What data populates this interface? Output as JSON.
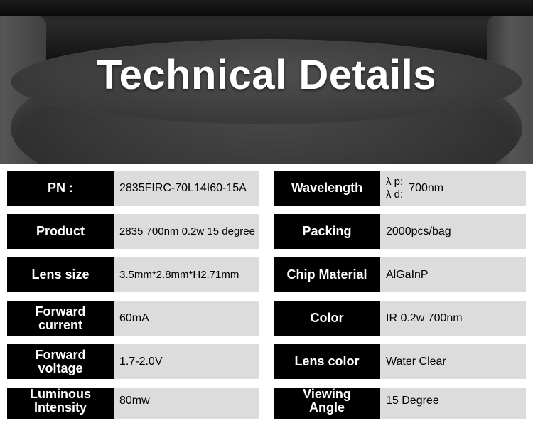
{
  "hero": {
    "title": "Technical Details"
  },
  "left": [
    {
      "label": "PN :",
      "value": "2835FIRC-70L14I60-15A",
      "twoLine": false
    },
    {
      "label": "Product",
      "value": "2835 700nm 0.2w 15 degree",
      "twoLine": false,
      "small": true
    },
    {
      "label": "Lens size",
      "value": "3.5mm*2.8mm*H2.71mm",
      "twoLine": false,
      "small": true
    },
    {
      "label": "Forward\ncurrent",
      "value": "60mA",
      "twoLine": true
    },
    {
      "label": "Forward\nvoltage",
      "value": "1.7-2.0V",
      "twoLine": true
    },
    {
      "label": "Luminous\nIntensity",
      "value": "80mw",
      "twoLine": true,
      "clipped": true
    }
  ],
  "right": [
    {
      "label": "Wavelength",
      "wavelength": {
        "p": "λ p:",
        "d": "λ d:",
        "value": "700nm"
      }
    },
    {
      "label": "Packing",
      "value": "2000pcs/bag"
    },
    {
      "label": "Chip Material",
      "value": "AlGaInP"
    },
    {
      "label": "Color",
      "value": "IR 0.2w 700nm"
    },
    {
      "label": "Lens color",
      "value": "Water Clear"
    },
    {
      "label": "Viewing\nAngle",
      "value": "15 Degree",
      "twoLine": true,
      "clipped": true
    }
  ],
  "colors": {
    "label_bg": "#000000",
    "label_fg": "#ffffff",
    "value_bg": "#dcdcdc",
    "value_fg": "#000000",
    "page_bg": "#ffffff"
  }
}
